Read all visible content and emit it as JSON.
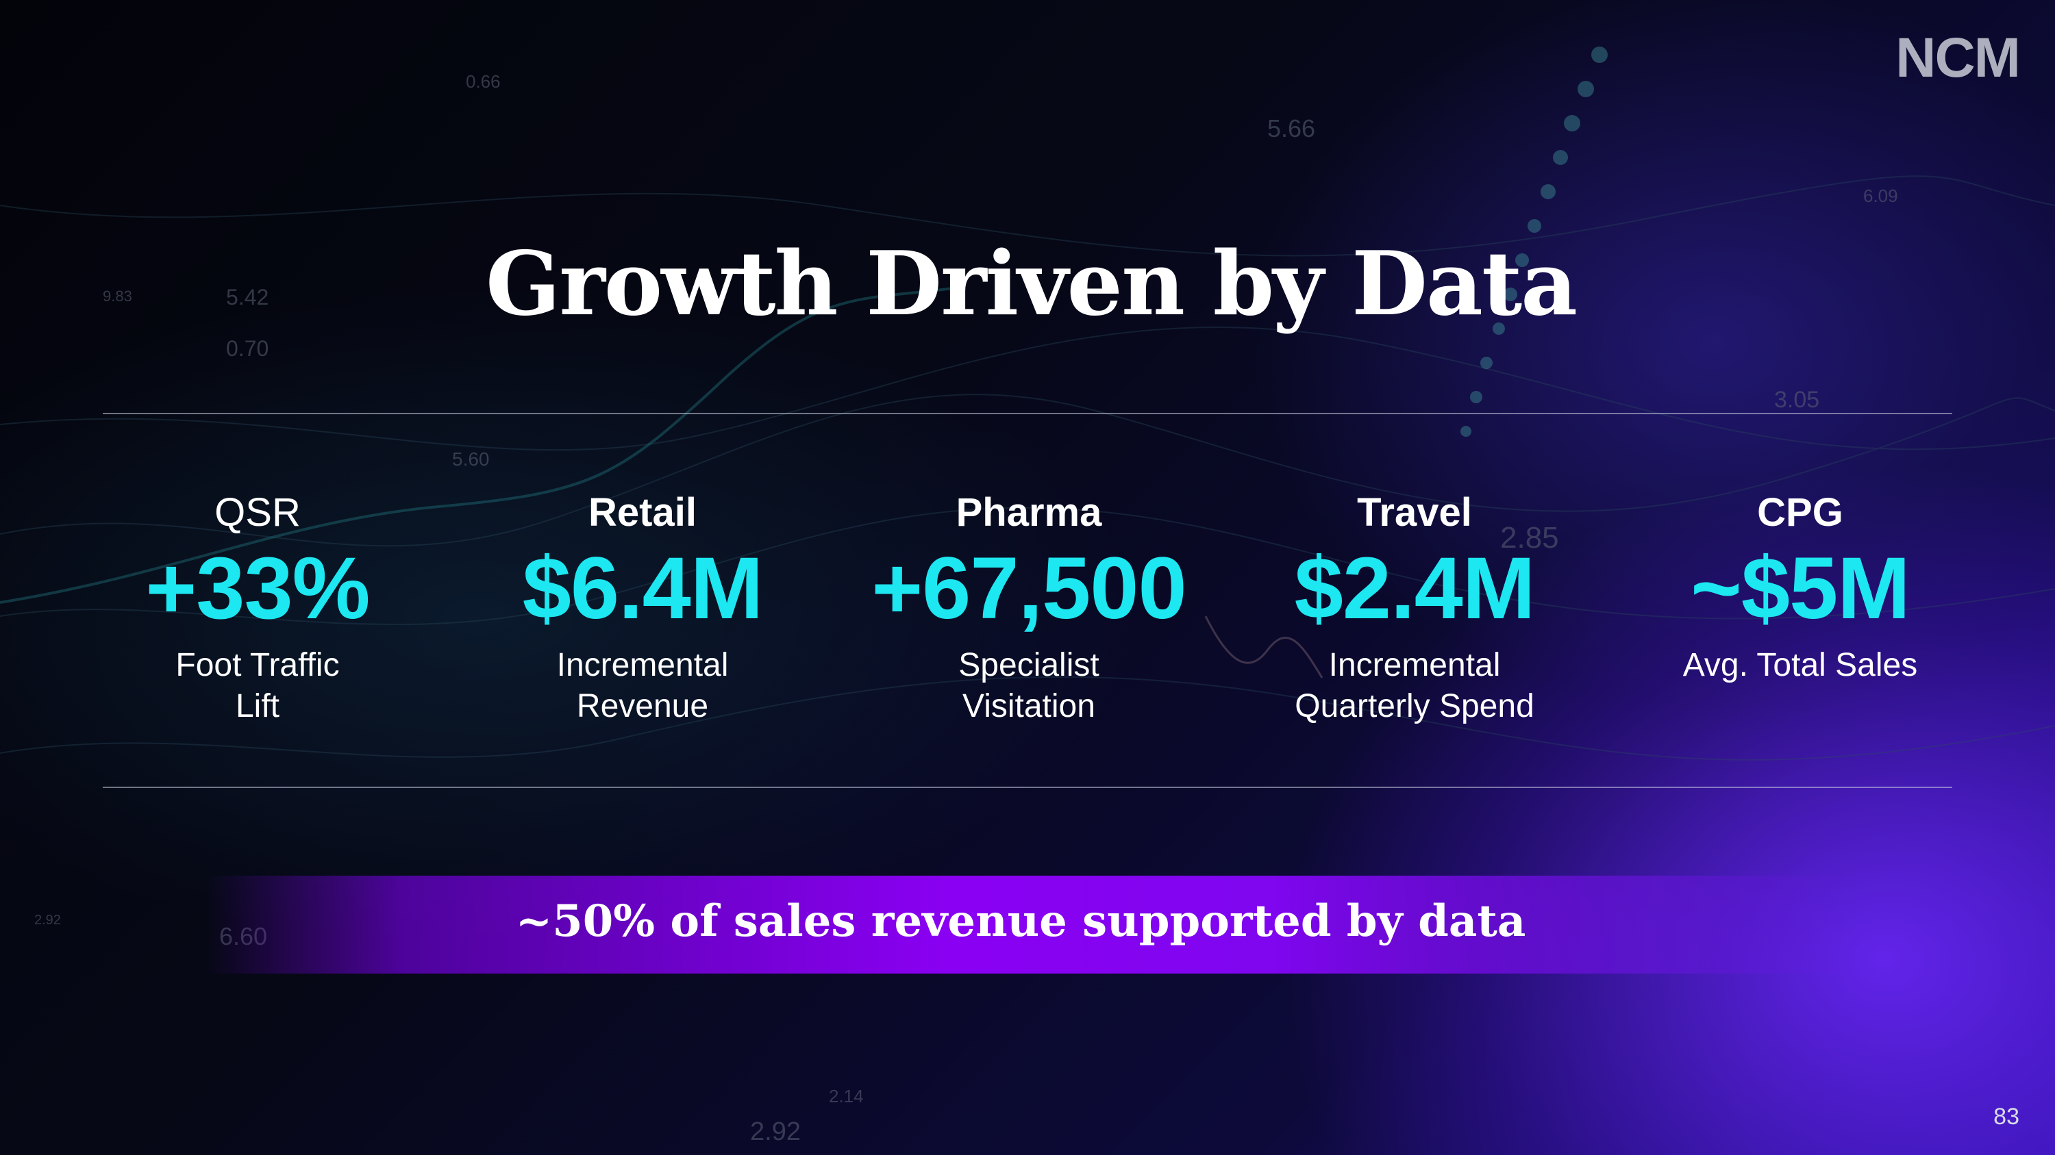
{
  "brand": {
    "logo_text": "NCM"
  },
  "title": "Growth Driven by Data",
  "stats": [
    {
      "category": "QSR",
      "value": "+33%",
      "description_lines": [
        "Foot Traffic",
        "Lift"
      ]
    },
    {
      "category": "Retail",
      "value": "$6.4M",
      "description_lines": [
        "Incremental",
        "Revenue"
      ]
    },
    {
      "category": "Pharma",
      "value": "+67,500",
      "description_lines": [
        "Specialist",
        "Visitation"
      ]
    },
    {
      "category": "Travel",
      "value": "$2.4M",
      "description_lines": [
        "Incremental",
        "Quarterly Spend"
      ]
    },
    {
      "category": "CPG",
      "value": "~$5M",
      "description_lines": [
        "Avg. Total Sales",
        ""
      ]
    }
  ],
  "banner": "~50% of sales revenue supported by data",
  "page_number": "83",
  "colors": {
    "value_accent": "#1de7f0",
    "banner": "#8a00f2",
    "text": "#ffffff"
  }
}
